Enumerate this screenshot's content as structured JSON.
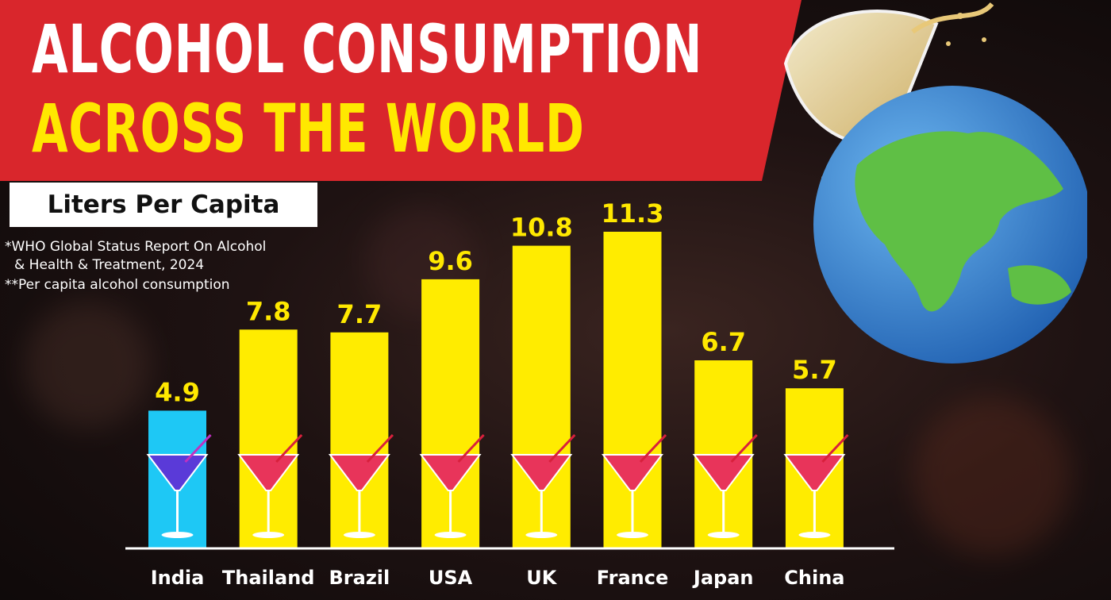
{
  "header": {
    "title_line1": "ALCOHOL CONSUMPTION",
    "title_line2": "ACROSS THE WORLD",
    "subtitle": "Liters Per Capita"
  },
  "notes": {
    "source_line1": "*WHO Global Status Report On Alcohol",
    "source_line2": "& Health & Treatment, 2024",
    "footnote": "**Per capita alcohol consumption"
  },
  "colors": {
    "banner": "#d9262c",
    "title_accent": "#ffe800",
    "bar_default": "#ffec00",
    "bar_highlight": "#1ec8f5",
    "value_label": "#ffe800",
    "axis_label": "#ffffff"
  },
  "chart_data": {
    "type": "bar",
    "categories": [
      "India",
      "Thailand",
      "Brazil",
      "USA",
      "UK",
      "France",
      "Japan",
      "China"
    ],
    "values": [
      4.9,
      7.8,
      7.7,
      9.6,
      10.8,
      11.3,
      6.7,
      5.7
    ],
    "highlight": "India",
    "ylabel": "Liters Per Capita",
    "ylim": [
      0,
      11.3
    ],
    "grid": false,
    "legend": "none",
    "data_labels": true
  }
}
